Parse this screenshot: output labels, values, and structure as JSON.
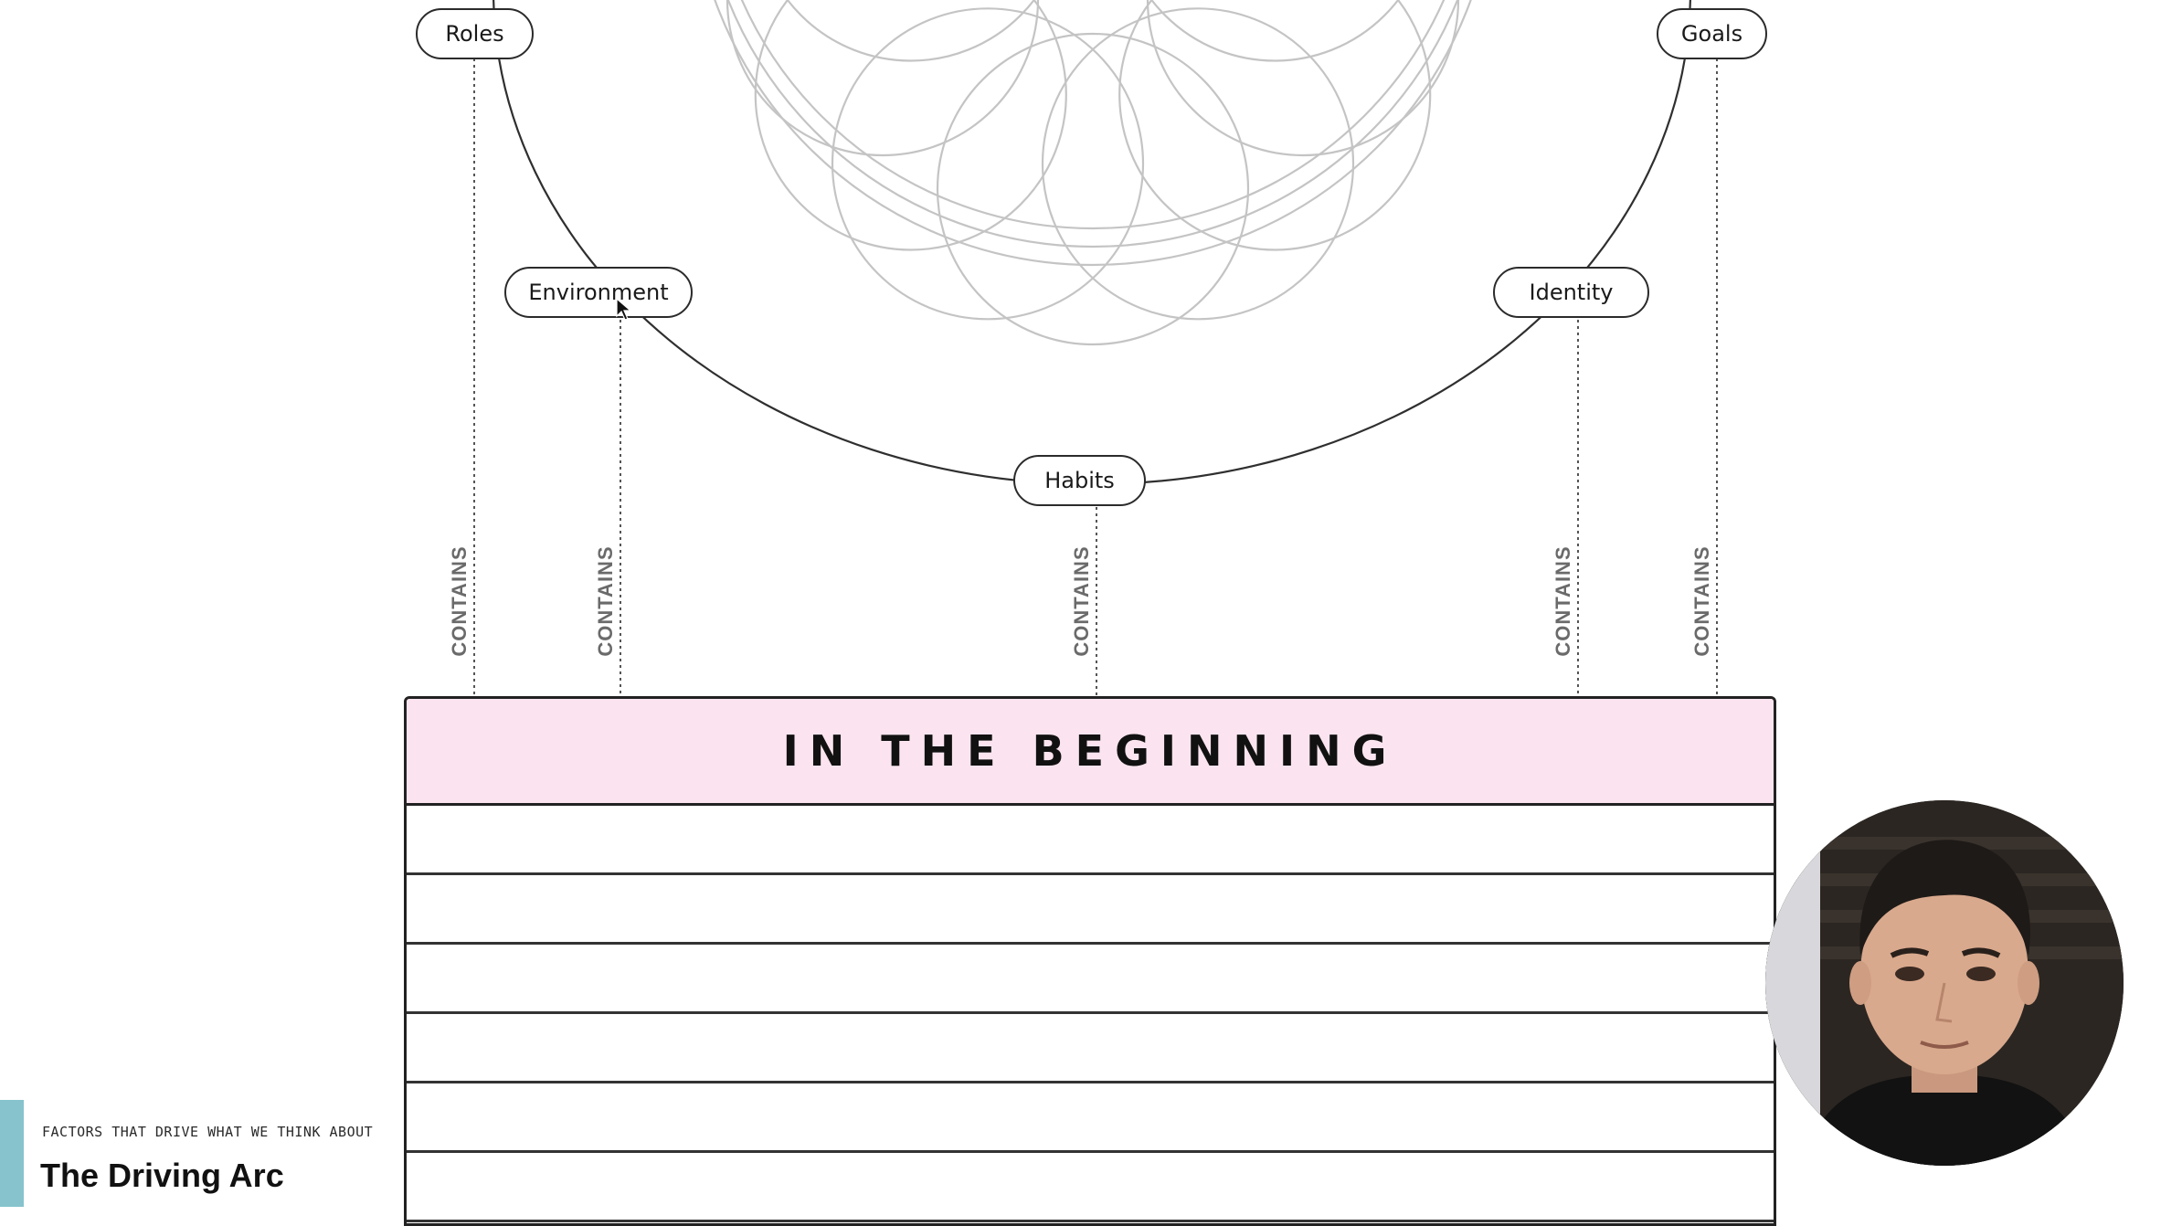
{
  "diagram": {
    "nodes": {
      "roles": "Roles",
      "goals": "Goals",
      "environment": "Environment",
      "identity": "Identity",
      "habits": "Habits"
    },
    "connector_label": "CONTAINS"
  },
  "table": {
    "header": "IN THE BEGINNING",
    "header_color": "#fbe4ef"
  },
  "caption": {
    "kicker": "FACTORS THAT DRIVE WHAT WE THINK ABOUT",
    "title": "The Driving Arc",
    "accent_color": "#86c3cd"
  }
}
